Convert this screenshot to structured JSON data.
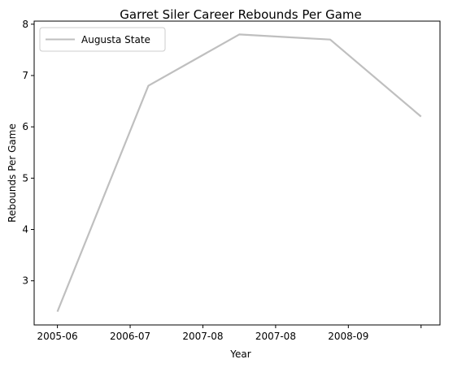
{
  "chart_data": {
    "type": "line",
    "title": "Garret Siler Career Rebounds Per Game",
    "xlabel": "Year",
    "ylabel": "Rebounds Per Game",
    "categories": [
      "2005-06",
      "2006-07",
      "2007-08",
      "2007-08",
      "2008-09",
      ""
    ],
    "series": [
      {
        "name": "Augusta State",
        "color": "#bfbfbf",
        "x": [
          0,
          1.25,
          2.5,
          3.75,
          5
        ],
        "values": [
          2.4,
          6.8,
          7.8,
          7.7,
          6.2
        ]
      }
    ],
    "xlim": [
      -0.32,
      5.26
    ],
    "ylim": [
      2.14,
      8.06
    ],
    "yticks": [
      3,
      4,
      5,
      6,
      7,
      8
    ],
    "legend_position": "top-left",
    "grid": false
  }
}
